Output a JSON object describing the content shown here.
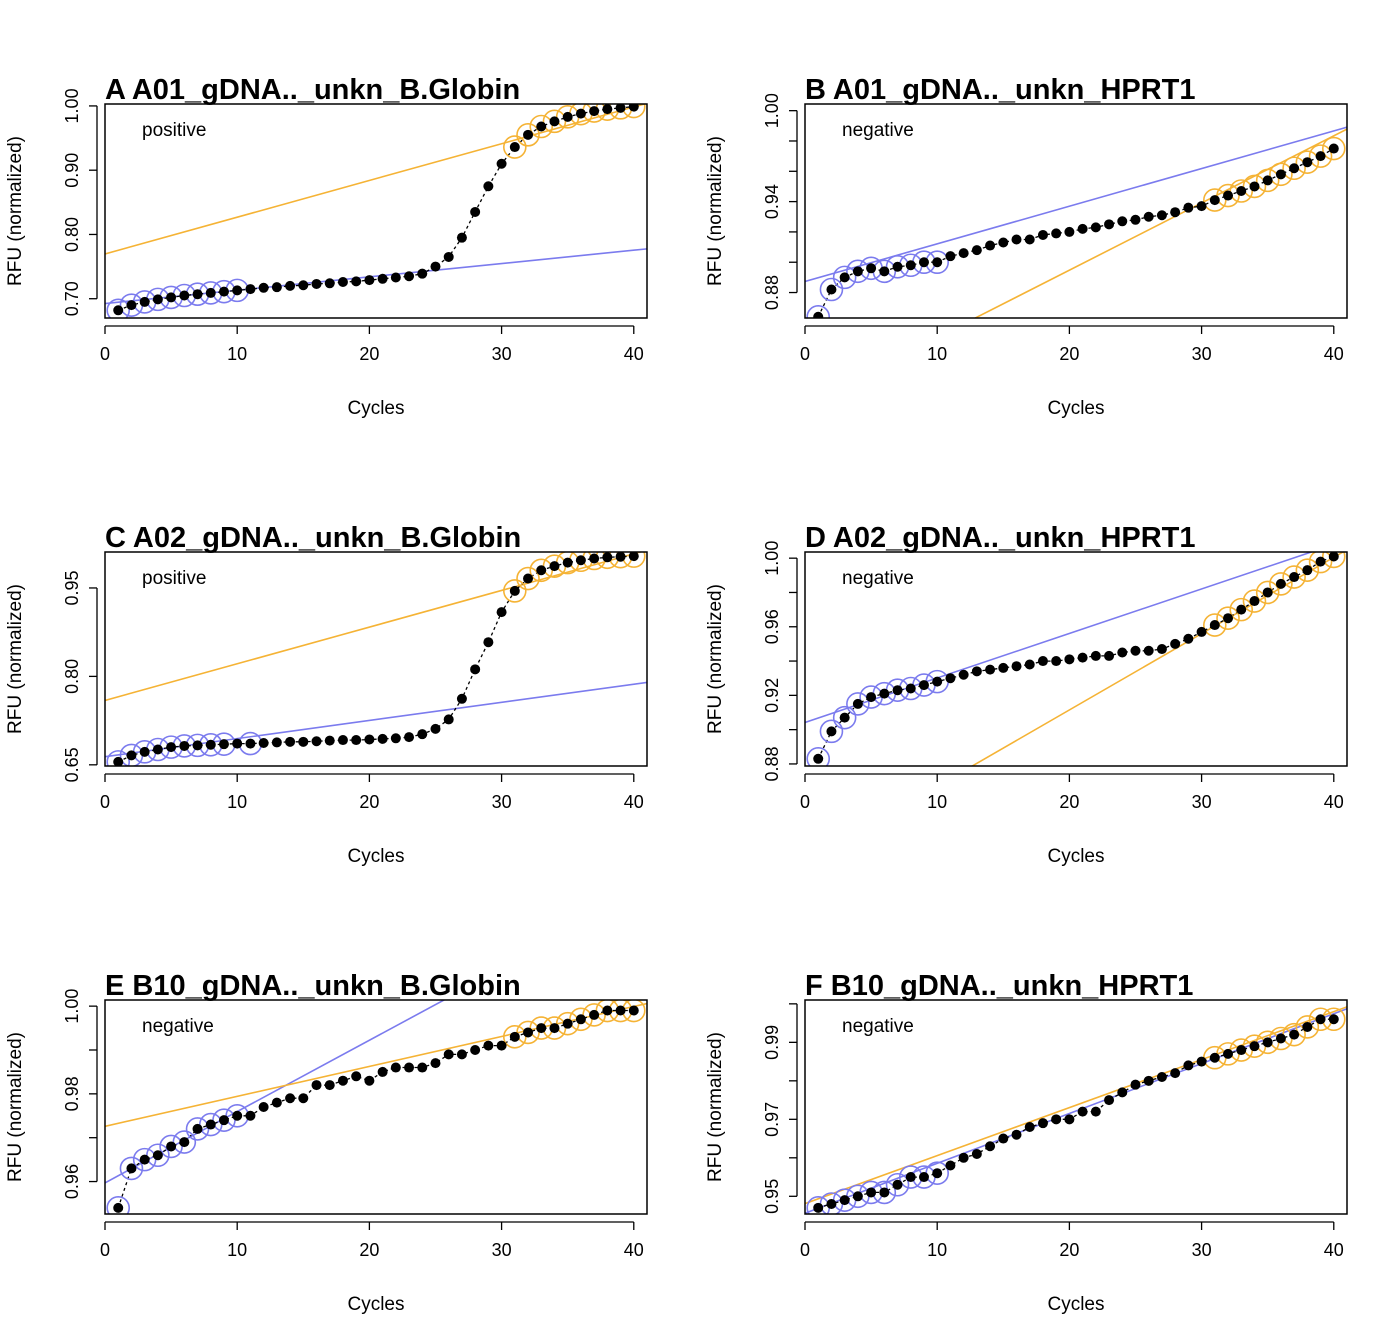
{
  "chart_data": [
    {
      "type": "scatter",
      "panel": "A",
      "title": "A   A01_gDNA.._unkn_B.Globin",
      "status": "positive",
      "xlabel": "Cycles",
      "ylabel": "RFU (normalized)",
      "xlim": [
        0,
        41
      ],
      "ylim": [
        0.67,
        1.003
      ],
      "xticks": [
        0,
        10,
        20,
        30,
        40
      ],
      "yticks": [
        0.7,
        0.8,
        0.9,
        1.0
      ],
      "ytick_labels": [
        "0.70",
        "0.80",
        "0.90",
        "1.00"
      ],
      "x": [
        1,
        2,
        3,
        4,
        5,
        6,
        7,
        8,
        9,
        10,
        11,
        12,
        13,
        14,
        15,
        16,
        17,
        18,
        19,
        20,
        21,
        22,
        23,
        24,
        25,
        26,
        27,
        28,
        29,
        30,
        31,
        32,
        33,
        34,
        35,
        36,
        37,
        38,
        39,
        40
      ],
      "y": [
        0.682,
        0.69,
        0.695,
        0.699,
        0.702,
        0.705,
        0.707,
        0.709,
        0.711,
        0.713,
        0.715,
        0.717,
        0.718,
        0.72,
        0.721,
        0.723,
        0.724,
        0.726,
        0.727,
        0.729,
        0.731,
        0.733,
        0.735,
        0.739,
        0.75,
        0.765,
        0.795,
        0.835,
        0.875,
        0.91,
        0.936,
        0.955,
        0.968,
        0.976,
        0.983,
        0.988,
        0.992,
        0.995,
        0.997,
        0.999
      ],
      "background_points": [
        1,
        2,
        3,
        4,
        5,
        6,
        7,
        8,
        9,
        10
      ],
      "plateau_points": [
        31,
        32,
        33,
        34,
        35,
        36,
        37,
        38,
        39,
        40
      ],
      "background_line": {
        "intercept": 0.6925,
        "slope": 0.002075
      },
      "plateau_line": {
        "intercept": 0.7697,
        "slope": 0.005717
      },
      "colors": {
        "background": "#7b7bee",
        "plateau": "#f5b335",
        "points": "#000000"
      }
    },
    {
      "type": "scatter",
      "panel": "B",
      "title": "B   A01_gDNA.._unkn_HPRT1",
      "status": "negative",
      "xlabel": "Cycles",
      "ylabel": "RFU (normalized)",
      "xlim": [
        0,
        41
      ],
      "ylim": [
        0.8632,
        1.0044
      ],
      "xticks": [
        0,
        10,
        20,
        30,
        40
      ],
      "yticks": [
        0.88,
        0.9,
        0.92,
        0.94,
        0.96,
        0.98,
        1.0
      ],
      "ytick_labels": [
        "0.88",
        "",
        "",
        "0.94",
        "",
        "",
        "1.00"
      ],
      "x": [
        1,
        2,
        3,
        4,
        5,
        6,
        7,
        8,
        9,
        10,
        11,
        12,
        13,
        14,
        15,
        16,
        17,
        18,
        19,
        20,
        21,
        22,
        23,
        24,
        25,
        26,
        27,
        28,
        29,
        30,
        31,
        32,
        33,
        34,
        35,
        36,
        37,
        38,
        39,
        40
      ],
      "y": [
        0.864,
        0.882,
        0.89,
        0.894,
        0.896,
        0.894,
        0.897,
        0.898,
        0.9,
        0.9,
        0.904,
        0.906,
        0.908,
        0.911,
        0.913,
        0.915,
        0.915,
        0.918,
        0.919,
        0.92,
        0.922,
        0.923,
        0.925,
        0.927,
        0.928,
        0.93,
        0.931,
        0.933,
        0.936,
        0.937,
        0.941,
        0.944,
        0.947,
        0.95,
        0.954,
        0.958,
        0.962,
        0.966,
        0.97,
        0.975
      ],
      "background_points": [
        1,
        2,
        3,
        4,
        5,
        6,
        7,
        8,
        9,
        10
      ],
      "plateau_points": [
        31,
        32,
        33,
        34,
        35,
        36,
        37,
        38,
        39,
        40
      ],
      "background_line": {
        "intercept": 0.8873,
        "slope": 0.002483
      },
      "plateau_line": {
        "intercept": 0.8061,
        "slope": 0.004433
      },
      "colors": {
        "background": "#7b7bee",
        "plateau": "#f5b335",
        "points": "#000000"
      }
    },
    {
      "type": "scatter",
      "panel": "C",
      "title": "C   A02_gDNA.._unkn_B.Globin",
      "status": "positive",
      "xlabel": "Cycles",
      "ylabel": "RFU (normalized)",
      "xlim": [
        0,
        41
      ],
      "ylim": [
        0.648,
        1.011
      ],
      "xticks": [
        0,
        10,
        20,
        30,
        40
      ],
      "yticks": [
        0.65,
        0.8,
        0.95
      ],
      "ytick_labels": [
        "0.65",
        "0.80",
        "0.95"
      ],
      "x": [
        1,
        2,
        3,
        4,
        5,
        6,
        7,
        8,
        9,
        10,
        11,
        12,
        13,
        14,
        15,
        16,
        17,
        18,
        19,
        20,
        21,
        22,
        23,
        24,
        25,
        26,
        27,
        28,
        29,
        30,
        31,
        32,
        33,
        34,
        35,
        36,
        37,
        38,
        39,
        40
      ],
      "y": [
        0.655,
        0.666,
        0.672,
        0.676,
        0.68,
        0.682,
        0.683,
        0.684,
        0.685,
        0.686,
        0.686,
        0.687,
        0.688,
        0.689,
        0.689,
        0.69,
        0.691,
        0.692,
        0.692,
        0.693,
        0.694,
        0.695,
        0.697,
        0.702,
        0.711,
        0.727,
        0.762,
        0.812,
        0.858,
        0.909,
        0.945,
        0.966,
        0.98,
        0.987,
        0.993,
        0.997,
        1.0,
        1.002,
        1.003,
        1.004
      ],
      "background_points": [
        1,
        2,
        3,
        4,
        5,
        6,
        7,
        8,
        9,
        11
      ],
      "plateau_points": [
        31,
        32,
        33,
        34,
        35,
        36,
        37,
        38,
        39,
        40
      ],
      "background_line": {
        "intercept": 0.6638,
        "slope": 0.003073
      },
      "plateau_line": {
        "intercept": 0.7592,
        "slope": 0.00622
      },
      "colors": {
        "background": "#7b7bee",
        "plateau": "#f5b335",
        "points": "#000000"
      }
    },
    {
      "type": "scatter",
      "panel": "D",
      "title": "D   A02_gDNA.._unkn_HPRT1",
      "status": "negative",
      "xlabel": "Cycles",
      "ylabel": "RFU (normalized)",
      "xlim": [
        0,
        41
      ],
      "ylim": [
        0.8788,
        1.0036
      ],
      "xticks": [
        0,
        10,
        20,
        30,
        40
      ],
      "yticks": [
        0.88,
        0.9,
        0.92,
        0.94,
        0.96,
        0.98,
        1.0
      ],
      "ytick_labels": [
        "0.88",
        "",
        "0.92",
        "",
        "0.96",
        "",
        "1.00"
      ],
      "x": [
        1,
        2,
        3,
        4,
        5,
        6,
        7,
        8,
        9,
        10,
        11,
        12,
        13,
        14,
        15,
        16,
        17,
        18,
        19,
        20,
        21,
        22,
        23,
        24,
        25,
        26,
        27,
        28,
        29,
        30,
        31,
        32,
        33,
        34,
        35,
        36,
        37,
        38,
        39,
        40
      ],
      "y": [
        0.883,
        0.899,
        0.907,
        0.915,
        0.919,
        0.921,
        0.923,
        0.924,
        0.926,
        0.928,
        0.93,
        0.932,
        0.934,
        0.935,
        0.936,
        0.937,
        0.938,
        0.94,
        0.94,
        0.941,
        0.942,
        0.943,
        0.943,
        0.945,
        0.946,
        0.946,
        0.947,
        0.95,
        0.953,
        0.957,
        0.961,
        0.965,
        0.97,
        0.975,
        0.98,
        0.985,
        0.989,
        0.993,
        0.998,
        1.001
      ],
      "background_points": [
        1,
        2,
        3,
        4,
        5,
        6,
        7,
        8,
        9,
        10
      ],
      "plateau_points": [
        31,
        32,
        33,
        34,
        35,
        36,
        37,
        38,
        39,
        40
      ],
      "background_line": {
        "intercept": 0.9042,
        "slope": 0.002595
      },
      "plateau_line": {
        "intercept": 0.8225,
        "slope": 0.00445
      },
      "colors": {
        "background": "#7b7bee",
        "plateau": "#f5b335",
        "points": "#000000"
      }
    },
    {
      "type": "scatter",
      "panel": "E",
      "title": "E   B10_gDNA.._unkn_B.Globin",
      "status": "negative",
      "xlabel": "Cycles",
      "ylabel": "RFU (normalized)",
      "xlim": [
        0,
        41
      ],
      "ylim": [
        0.9526,
        1.0014
      ],
      "xticks": [
        0,
        10,
        20,
        30,
        40
      ],
      "yticks": [
        0.96,
        0.97,
        0.98,
        0.99,
        1.0
      ],
      "ytick_labels": [
        "0.96",
        "",
        "0.98",
        "",
        "1.00"
      ],
      "x": [
        1,
        2,
        3,
        4,
        5,
        6,
        7,
        8,
        9,
        10,
        11,
        12,
        13,
        14,
        15,
        16,
        17,
        18,
        19,
        20,
        21,
        22,
        23,
        24,
        25,
        26,
        27,
        28,
        29,
        30,
        31,
        32,
        33,
        34,
        35,
        36,
        37,
        38,
        39,
        40
      ],
      "y": [
        0.954,
        0.963,
        0.965,
        0.966,
        0.968,
        0.969,
        0.972,
        0.973,
        0.974,
        0.975,
        0.975,
        0.977,
        0.978,
        0.979,
        0.979,
        0.982,
        0.982,
        0.983,
        0.984,
        0.983,
        0.985,
        0.986,
        0.986,
        0.986,
        0.987,
        0.989,
        0.989,
        0.99,
        0.991,
        0.991,
        0.993,
        0.994,
        0.995,
        0.995,
        0.996,
        0.997,
        0.998,
        0.999,
        0.999,
        0.999
      ],
      "background_points": [
        1,
        2,
        3,
        4,
        5,
        6,
        7,
        8,
        9,
        10
      ],
      "plateau_points": [
        31,
        32,
        33,
        34,
        35,
        36,
        37,
        38,
        39,
        40
      ],
      "background_line": {
        "intercept": 0.9597,
        "slope": 0.001626
      },
      "plateau_line": {
        "intercept": 0.9726,
        "slope": 0.000683
      },
      "colors": {
        "background": "#7b7bee",
        "plateau": "#f5b335",
        "points": "#000000"
      }
    },
    {
      "type": "scatter",
      "panel": "F",
      "title": "F   B10_gDNA.._unkn_HPRT1",
      "status": "negative",
      "xlabel": "Cycles",
      "ylabel": "RFU (normalized)",
      "xlim": [
        0,
        41
      ],
      "ylim": [
        0.9454,
        1.001
      ],
      "xticks": [
        0,
        10,
        20,
        30,
        40
      ],
      "yticks": [
        0.95,
        0.96,
        0.97,
        0.98,
        0.99,
        1.0
      ],
      "ytick_labels": [
        "0.95",
        "",
        "0.97",
        "",
        "0.99",
        ""
      ],
      "x": [
        1,
        2,
        3,
        4,
        5,
        6,
        7,
        8,
        9,
        10,
        11,
        12,
        13,
        14,
        15,
        16,
        17,
        18,
        19,
        20,
        21,
        22,
        23,
        24,
        25,
        26,
        27,
        28,
        29,
        30,
        31,
        32,
        33,
        34,
        35,
        36,
        37,
        38,
        39,
        40
      ],
      "y": [
        0.947,
        0.948,
        0.949,
        0.95,
        0.951,
        0.951,
        0.953,
        0.955,
        0.955,
        0.956,
        0.958,
        0.96,
        0.961,
        0.963,
        0.965,
        0.966,
        0.968,
        0.969,
        0.97,
        0.97,
        0.972,
        0.972,
        0.975,
        0.977,
        0.979,
        0.98,
        0.981,
        0.982,
        0.984,
        0.985,
        0.986,
        0.987,
        0.988,
        0.989,
        0.99,
        0.991,
        0.992,
        0.994,
        0.996,
        0.996
      ],
      "background_points": [
        1,
        2,
        3,
        4,
        5,
        6,
        7,
        8,
        9,
        10
      ],
      "plateau_points": [
        31,
        32,
        33,
        34,
        35,
        36,
        37,
        38,
        39,
        40
      ],
      "background_line": {
        "intercept": 0.9456,
        "slope": 0.001296
      },
      "plateau_line": {
        "intercept": 0.9481,
        "slope": 0.001247
      },
      "colors": {
        "background": "#7b7bee",
        "plateau": "#f5b335",
        "points": "#000000"
      }
    }
  ]
}
